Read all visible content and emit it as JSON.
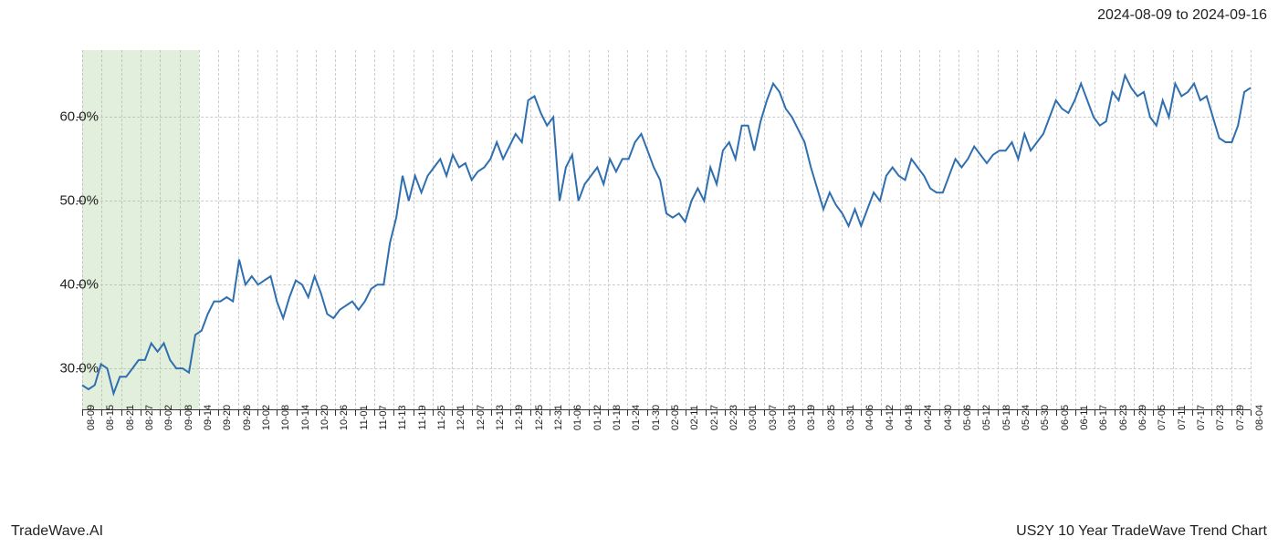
{
  "labels": {
    "top_right": "2024-08-09 to 2024-09-16",
    "bottom_left": "TradeWave.AI",
    "bottom_right": "US2Y 10 Year TradeWave Trend Chart"
  },
  "chart": {
    "type": "line",
    "background_color": "#ffffff",
    "grid_color": "#cccccc",
    "axis_color": "#333333",
    "line_color": "#2f6fb0",
    "line_width": 2,
    "highlight_band": {
      "color": "rgba(140,190,120,0.25)",
      "x_start_index": 0,
      "x_end_index": 6
    },
    "ylim": [
      25,
      68
    ],
    "y_ticks": [
      30,
      40,
      50,
      60
    ],
    "y_tick_labels": [
      "30.0%",
      "40.0%",
      "50.0%",
      "60.0%"
    ],
    "x_tick_labels": [
      "08-09",
      "08-15",
      "08-21",
      "08-27",
      "09-02",
      "09-08",
      "09-14",
      "09-20",
      "09-26",
      "10-02",
      "10-08",
      "10-14",
      "10-20",
      "10-26",
      "11-01",
      "11-07",
      "11-13",
      "11-19",
      "11-25",
      "12-01",
      "12-07",
      "12-13",
      "12-19",
      "12-25",
      "12-31",
      "01-06",
      "01-12",
      "01-18",
      "01-24",
      "01-30",
      "02-05",
      "02-11",
      "02-17",
      "02-23",
      "03-01",
      "03-07",
      "03-13",
      "03-19",
      "03-25",
      "03-31",
      "04-06",
      "04-12",
      "04-18",
      "04-24",
      "04-30",
      "05-06",
      "05-12",
      "05-18",
      "05-24",
      "05-30",
      "06-05",
      "06-11",
      "06-17",
      "06-23",
      "06-29",
      "07-05",
      "07-11",
      "07-17",
      "07-23",
      "07-29",
      "08-04"
    ],
    "values": [
      28,
      27.5,
      28,
      30.5,
      30,
      27,
      29,
      29,
      30,
      31,
      31,
      33,
      32,
      33,
      31,
      30,
      30,
      29.5,
      34,
      34.5,
      36.5,
      38,
      38,
      38.5,
      38,
      43,
      40,
      41,
      40,
      40.5,
      41,
      38,
      36,
      38.5,
      40.5,
      40,
      38.5,
      41,
      39,
      36.5,
      36,
      37,
      37.5,
      38,
      37,
      38,
      39.5,
      40,
      40,
      45,
      48,
      53,
      50,
      53,
      51,
      53,
      54,
      55,
      53,
      55.5,
      54,
      54.5,
      52.5,
      53.5,
      54,
      55,
      57,
      55,
      56.5,
      58,
      57,
      62,
      62.5,
      60.5,
      59,
      60,
      50,
      54,
      55.5,
      50,
      52,
      53,
      54,
      52,
      55,
      53.5,
      55,
      55,
      57,
      58,
      56,
      54,
      52.5,
      48.5,
      48,
      48.5,
      47.5,
      50,
      51.5,
      50,
      54,
      52,
      56,
      57,
      55,
      59,
      59,
      56,
      59.5,
      62,
      64,
      63,
      61,
      60,
      58.5,
      57,
      54,
      51.5,
      49,
      51,
      49.5,
      48.5,
      47,
      49,
      47,
      49,
      51,
      50,
      53,
      54,
      53,
      52.5,
      55,
      54,
      53,
      51.5,
      51,
      51,
      53,
      55,
      54,
      55,
      56.5,
      55.5,
      54.5,
      55.5,
      56,
      56,
      57,
      55,
      58,
      56,
      57,
      58,
      60,
      62,
      61,
      60.5,
      62,
      64,
      62,
      60,
      59,
      59.5,
      63,
      62,
      65,
      63.5,
      62.5,
      63,
      60,
      59,
      62,
      60,
      64,
      62.5,
      63,
      64,
      62,
      62.5,
      60,
      57.5,
      57,
      57,
      59,
      63,
      63.5
    ],
    "label_fontsize": 15,
    "xlabel_fontsize": 11
  }
}
